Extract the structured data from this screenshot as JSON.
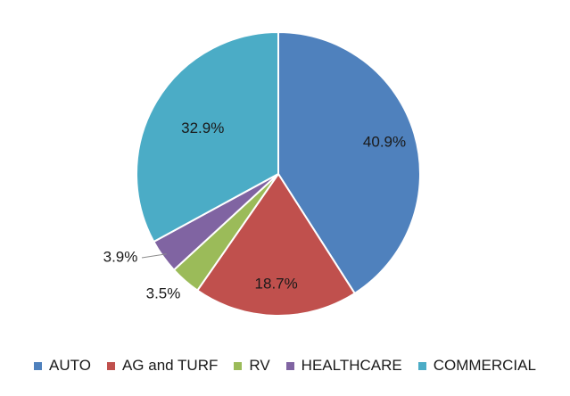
{
  "chart_data": {
    "type": "pie",
    "title": "",
    "legend_position": "bottom",
    "categories": [
      "AUTO",
      "AG and TURF",
      "RV",
      "HEALTHCARE",
      "COMMERCIAL"
    ],
    "values": [
      40.9,
      18.7,
      3.5,
      3.9,
      32.9
    ],
    "labels": [
      "40.9%",
      "18.7%",
      "3.5%",
      "3.9%",
      "32.9%"
    ],
    "colors": [
      "#4f81bd",
      "#c0504d",
      "#9bbb59",
      "#8064a2",
      "#4bacc6"
    ],
    "start_angle": "12 o'clock",
    "direction": "clockwise"
  }
}
